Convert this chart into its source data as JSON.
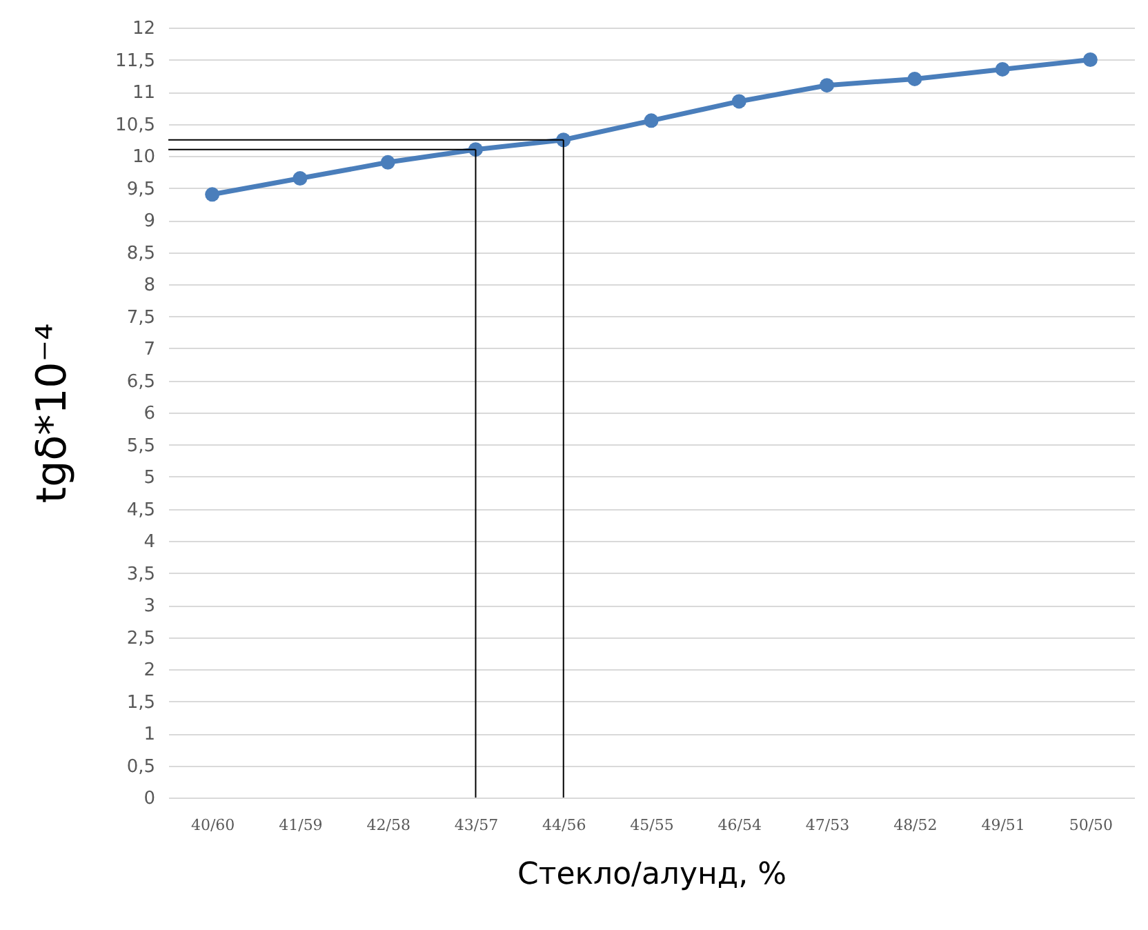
{
  "chart_data": {
    "type": "line",
    "xlabel": "Стекло/алунд, %",
    "ylabel": "tgδ*10⁻⁴",
    "categories": [
      "40/60",
      "41/59",
      "42/58",
      "43/57",
      "44/56",
      "45/55",
      "46/54",
      "47/53",
      "48/52",
      "49/51",
      "50/50"
    ],
    "series": [
      {
        "color": "#4a7ebb",
        "values": [
          9.4,
          9.65,
          9.9,
          10.1,
          10.25,
          10.55,
          10.85,
          11.1,
          11.2,
          11.35,
          11.5
        ]
      }
    ],
    "ylim": [
      0,
      12
    ],
    "yticks": [
      0,
      {
        "value": 0.5,
        "label": "0,5"
      },
      1,
      {
        "value": 1.5,
        "label": "1,5"
      },
      2,
      {
        "value": 2.5,
        "label": "2,5"
      },
      3,
      {
        "value": 3.5,
        "label": "3,5"
      },
      4,
      {
        "value": 4.5,
        "label": "4,5"
      },
      5,
      {
        "value": 5.5,
        "label": "5,5"
      },
      6,
      {
        "value": 6.5,
        "label": "6,5"
      },
      7,
      {
        "value": 7.5,
        "label": "7,5"
      },
      8,
      {
        "value": 8.5,
        "label": "8,5"
      },
      9,
      {
        "value": 9.5,
        "label": "9,5"
      },
      10,
      {
        "value": 10.5,
        "label": "10,5"
      },
      11,
      {
        "value": 11.5,
        "label": "11,5"
      },
      12
    ],
    "ref_lines": [
      {
        "axis": "y",
        "value": 10.1,
        "color": "#000000"
      },
      {
        "axis": "y",
        "value": 10.25,
        "color": "#000000"
      },
      {
        "axis": "x",
        "value": "43/57",
        "color": "#000000"
      },
      {
        "axis": "x",
        "value": "44/56",
        "color": "#000000"
      }
    ],
    "grid": "y",
    "legend": false,
    "marker": "circle",
    "line_style": "solid"
  }
}
